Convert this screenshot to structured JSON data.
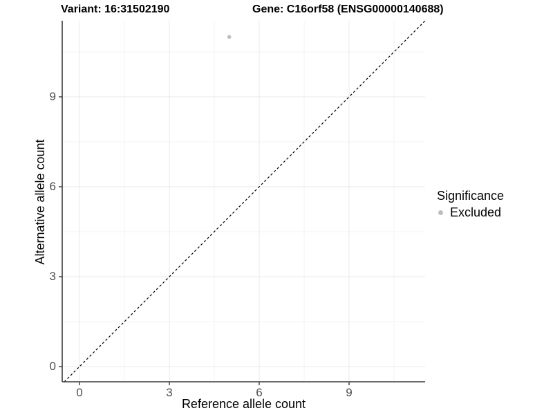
{
  "header": {
    "title_left": "Variant: 16:31502190",
    "title_right": "Gene: C16orf58 (ENSG00000140688)"
  },
  "chart_data": {
    "type": "scatter",
    "title": "Variant: 16:31502190 | Gene: C16orf58 (ENSG00000140688)",
    "xlabel": "Reference allele count",
    "ylabel": "Alternative allele count",
    "xlim": [
      -0.58,
      11.54
    ],
    "ylim": [
      -0.51,
      11.54
    ],
    "xticks": [
      0,
      3,
      6,
      9
    ],
    "yticks": [
      0,
      3,
      6,
      9
    ],
    "grid": "major and minor, light gray on white",
    "series": [
      {
        "name": "Excluded",
        "color": "#bebebe",
        "points": [
          {
            "x": 5,
            "y": 11
          }
        ]
      }
    ],
    "reference_line": {
      "type": "identity y=x",
      "style": "dashed",
      "color": "#000000"
    },
    "legend": {
      "title": "Significance",
      "position": "right",
      "items": [
        {
          "label": "Excluded",
          "color": "#bebebe"
        }
      ]
    }
  },
  "colors": {
    "background": "#ffffff",
    "grid_major": "#e8e8e8",
    "grid_minor": "#f3f3f3",
    "axis_line": "#3a3a3a",
    "tick_label": "#4d4d4d",
    "point": "#bebebe",
    "identity_line": "#000000"
  }
}
